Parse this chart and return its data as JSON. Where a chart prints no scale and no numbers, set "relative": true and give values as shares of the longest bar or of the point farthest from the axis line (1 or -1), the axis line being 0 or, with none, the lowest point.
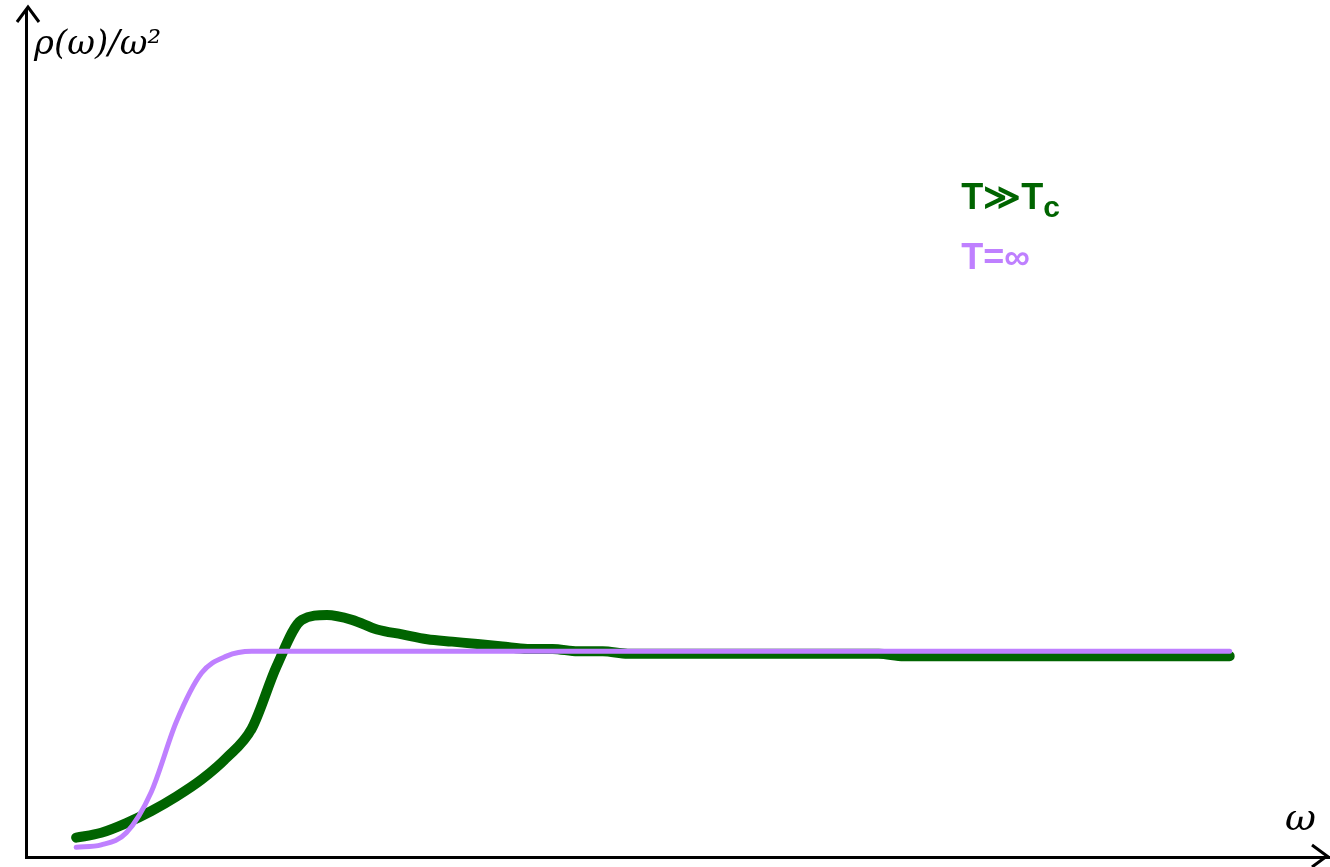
{
  "chart_data": {
    "type": "line",
    "relative": true,
    "xlabel": "ω",
    "annotations": [
      "ρ(ω)/ω²"
    ],
    "legend": "top right",
    "grid": false,
    "marker": "none",
    "line_style": "solid",
    "categories": [
      null,
      null,
      null,
      null,
      null,
      null,
      null,
      null,
      null,
      null,
      null,
      null,
      null,
      null,
      null,
      null,
      null,
      null,
      null,
      null,
      null,
      null,
      null,
      null,
      null,
      null,
      null,
      null,
      null,
      null,
      null,
      null,
      null,
      null,
      null,
      null,
      null,
      null,
      null,
      null,
      null,
      null,
      null,
      null,
      null,
      null,
      null,
      null,
      null,
      null,
      null,
      null,
      null
    ],
    "series": [
      {
        "name": "T≫T$_{c}$",
        "color": "#006400",
        "values": [
          null,
          null,
          0.08,
          0.1,
          0.14,
          0.19,
          0.25,
          0.32,
          0.41,
          0.53,
          0.79,
          0.98,
          1,
          0.98,
          0.94,
          0.92,
          0.9,
          0.89,
          0.88,
          0.87,
          0.86,
          0.86,
          0.85,
          0.85,
          0.84,
          0.84,
          0.84,
          0.84,
          0.84,
          0.84,
          0.84,
          0.84,
          0.84,
          0.84,
          0.84,
          0.83,
          0.83,
          0.83,
          0.83,
          0.83,
          0.83,
          0.83,
          0.83,
          0.83,
          0.83,
          0.83,
          0.83,
          0.83,
          0.83,
          null,
          null,
          null,
          null
        ]
      },
      {
        "name": "T=∞",
        "color": "#bf80ff",
        "values": [
          null,
          null,
          0.04,
          0.05,
          0.1,
          0.27,
          0.56,
          0.76,
          0.83,
          0.85,
          0.85,
          0.85,
          0.85,
          0.85,
          0.85,
          0.85,
          0.85,
          0.85,
          0.85,
          0.85,
          0.85,
          0.85,
          0.85,
          0.85,
          0.85,
          0.85,
          0.85,
          0.85,
          0.85,
          0.85,
          0.85,
          0.85,
          0.85,
          0.85,
          0.85,
          0.85,
          0.85,
          0.85,
          0.85,
          0.85,
          0.85,
          0.85,
          0.85,
          0.85,
          0.85,
          0.85,
          0.85,
          0.85,
          0.85,
          null,
          null,
          null,
          null
        ]
      }
    ]
  }
}
